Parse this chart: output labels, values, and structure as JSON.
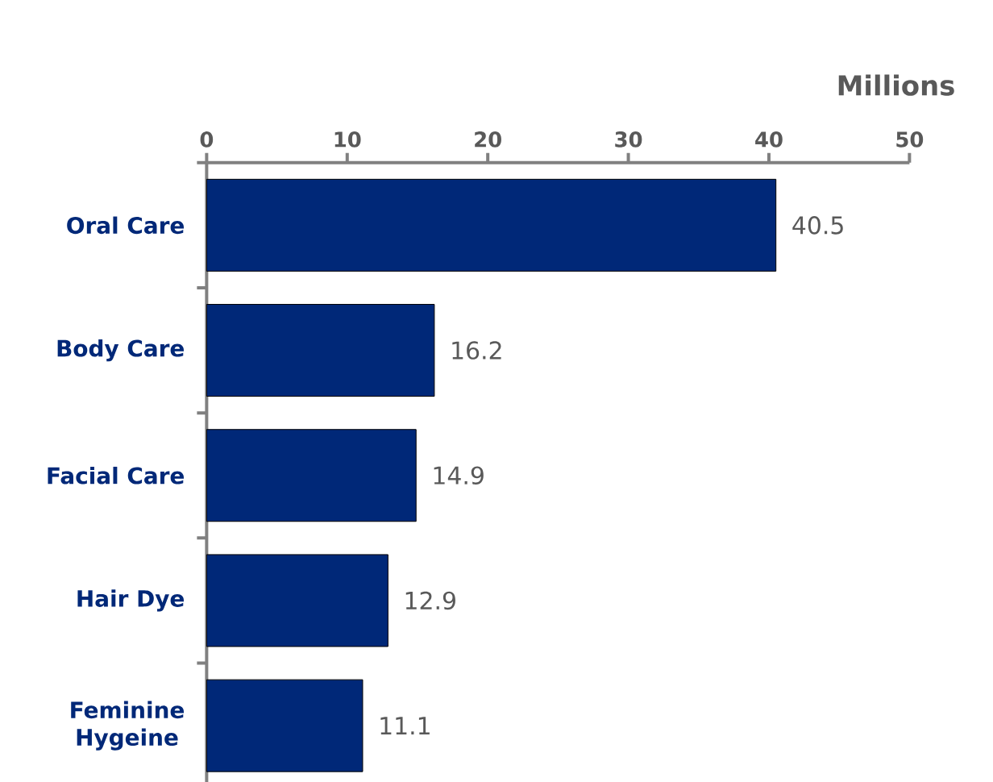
{
  "chart_data": {
    "type": "bar",
    "orientation": "horizontal",
    "xlabel": "Millions",
    "categories": [
      "Oral Care",
      "Body Care",
      "Facial Care",
      "Hair Dye",
      "Feminine Hygeine"
    ],
    "values": [
      40.5,
      16.2,
      14.9,
      12.9,
      11.1
    ],
    "color": "#002878",
    "xlim": [
      0,
      50
    ],
    "xticks": [
      0,
      10,
      20,
      30,
      40,
      50
    ],
    "data_labels": true,
    "grid": false
  }
}
